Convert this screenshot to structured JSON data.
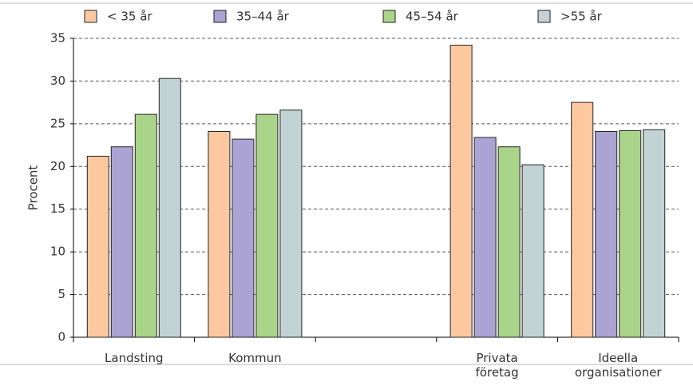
{
  "chart_data": {
    "type": "bar",
    "y_label": "Procent",
    "categories": [
      "Landsting",
      "Kommun",
      null,
      "Privata företag",
      "Ideella organisationer"
    ],
    "series": [
      {
        "name": "< 35 år",
        "color": "#fdc8a0",
        "values": [
          21.2,
          24.1,
          null,
          34.2,
          27.5
        ]
      },
      {
        "name": "35–44 år",
        "color": "#aaa3d3",
        "values": [
          22.3,
          23.2,
          null,
          23.4,
          24.1
        ]
      },
      {
        "name": "45–54 år",
        "color": "#a9d48a",
        "values": [
          26.1,
          26.1,
          null,
          22.3,
          24.2
        ]
      },
      {
        "name": ">55 år",
        "color": "#c2d3d6",
        "values": [
          30.3,
          26.6,
          null,
          20.2,
          24.3
        ]
      }
    ],
    "ylim": [
      0,
      35
    ],
    "yticks": [
      0,
      5,
      10,
      15,
      20,
      25,
      30,
      35
    ],
    "grid": true
  }
}
